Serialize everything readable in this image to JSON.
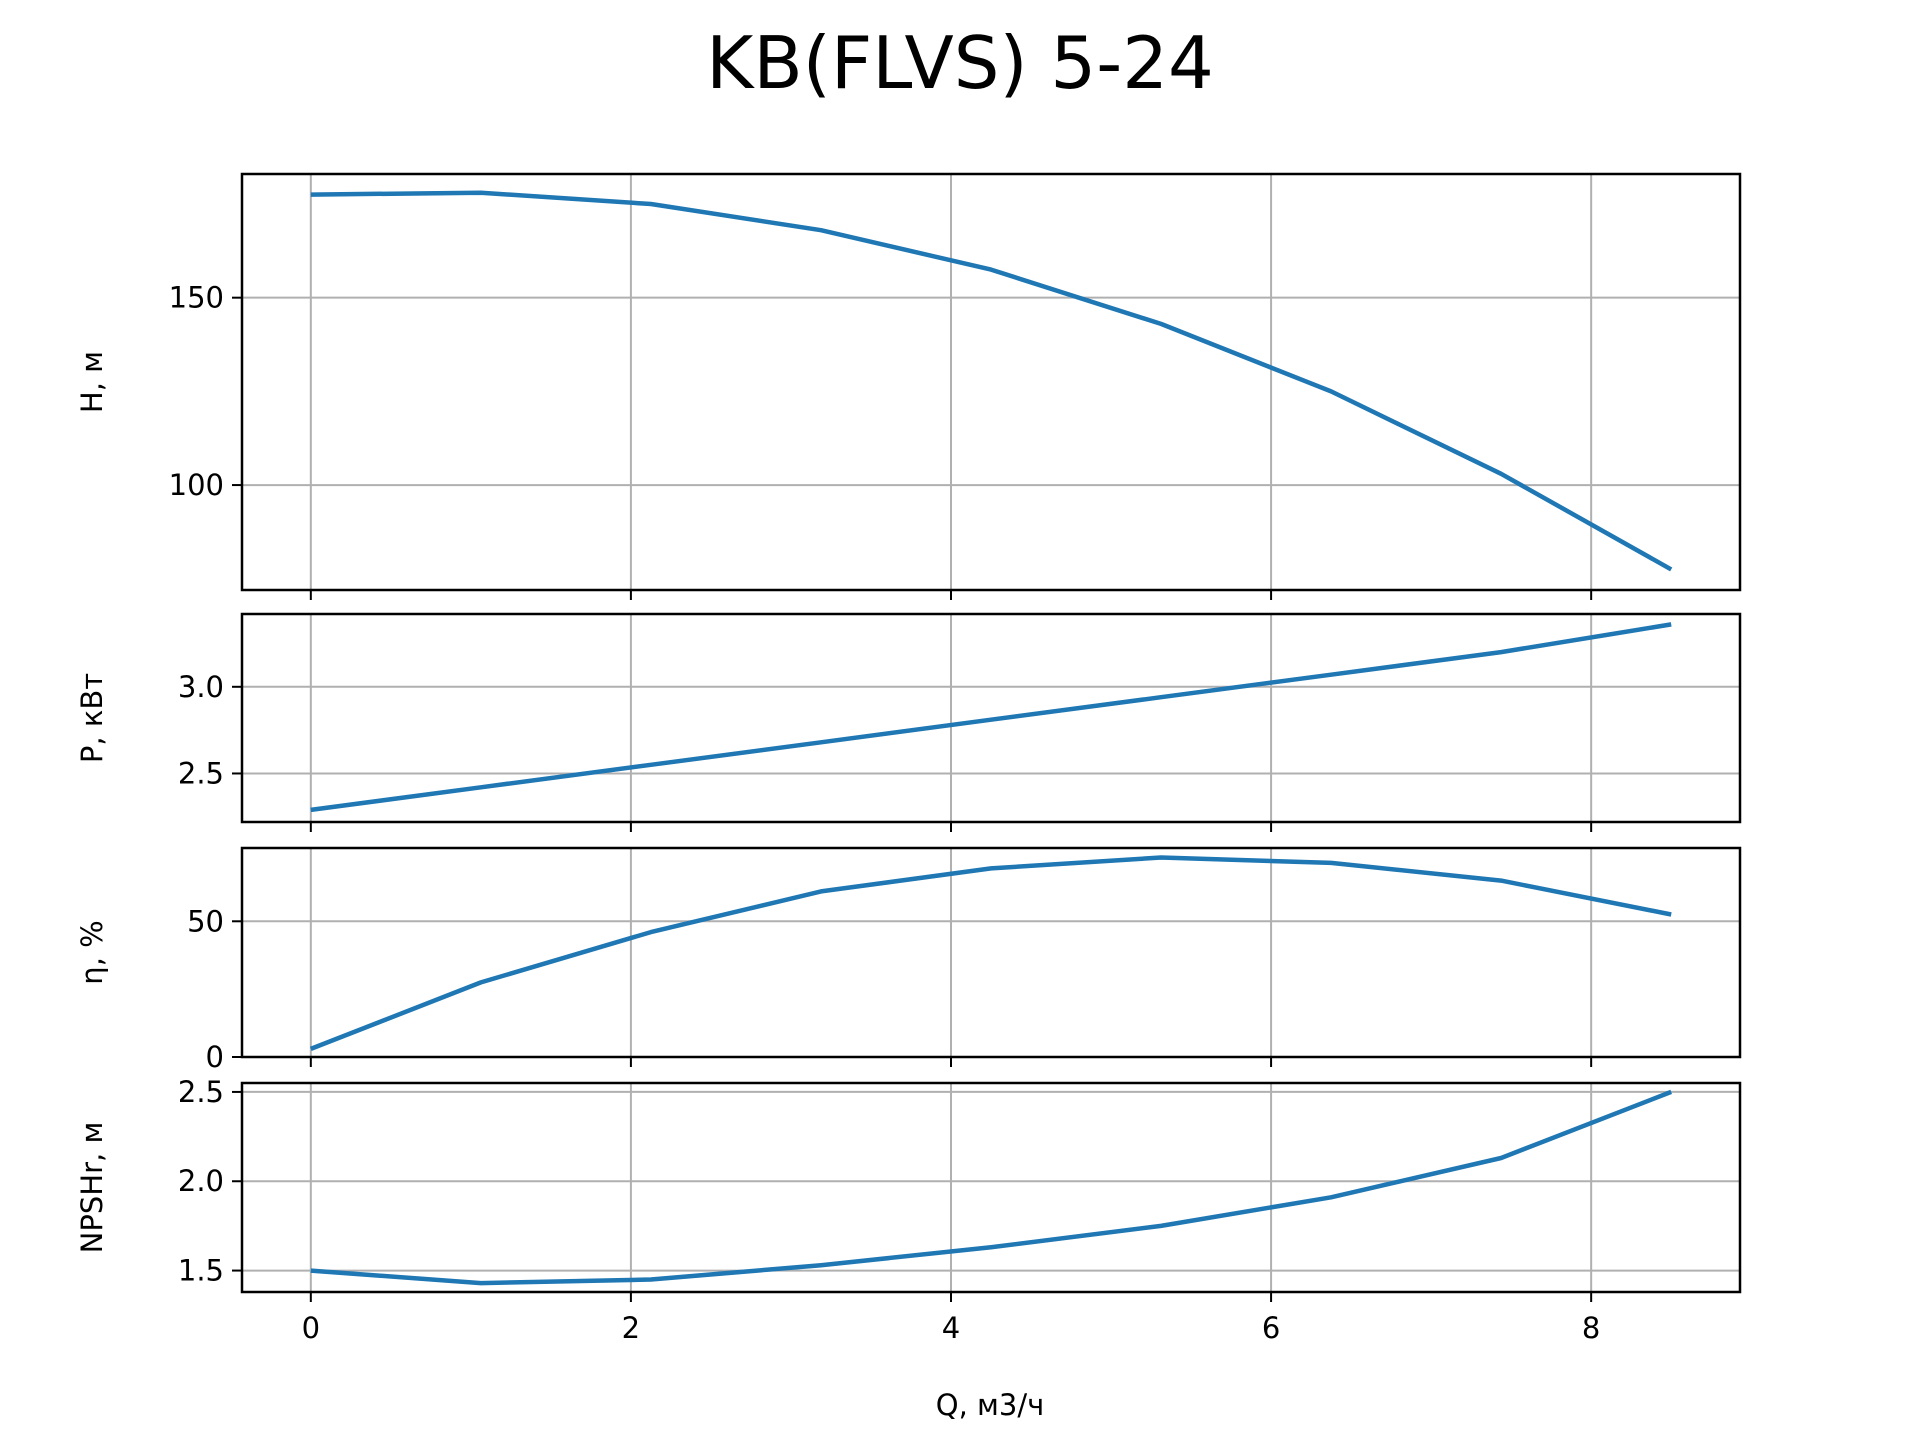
{
  "chart_data": {
    "type": "line",
    "title": "KB(FLVS) 5-24",
    "xlabel": "Q, м3/ч",
    "xlim": [
      -0.43,
      8.93
    ],
    "xticks": [
      0,
      2,
      4,
      6,
      8
    ],
    "x": [
      0,
      1.0625,
      2.125,
      3.1875,
      4.25,
      5.3125,
      6.375,
      7.4375,
      8.5
    ],
    "grid": true,
    "line_color": "#1f77b4",
    "subplots": [
      {
        "ylabel": "H, м",
        "ylim": [
          72,
          183
        ],
        "yticks": [
          100,
          150
        ],
        "values": [
          177.5,
          178,
          175,
          168,
          157.5,
          143,
          125,
          103,
          77.5
        ]
      },
      {
        "ylabel": "P, кВт",
        "ylim": [
          2.22,
          3.42
        ],
        "yticks": [
          2.5,
          3.0
        ],
        "values": [
          2.29,
          2.42,
          2.55,
          2.68,
          2.81,
          2.94,
          3.07,
          3.2,
          3.36
        ]
      },
      {
        "ylabel": "η, %",
        "ylim": [
          0,
          77
        ],
        "yticks": [
          0,
          50
        ],
        "values": [
          3,
          27.5,
          46,
          61,
          69.5,
          73.5,
          71.5,
          65,
          52.5
        ]
      },
      {
        "ylabel": "NPSHr, м",
        "ylim": [
          1.38,
          2.55
        ],
        "yticks": [
          1.5,
          2.0,
          2.5
        ],
        "values": [
          1.5,
          1.43,
          1.45,
          1.53,
          1.63,
          1.75,
          1.91,
          2.13,
          2.5
        ]
      }
    ]
  }
}
